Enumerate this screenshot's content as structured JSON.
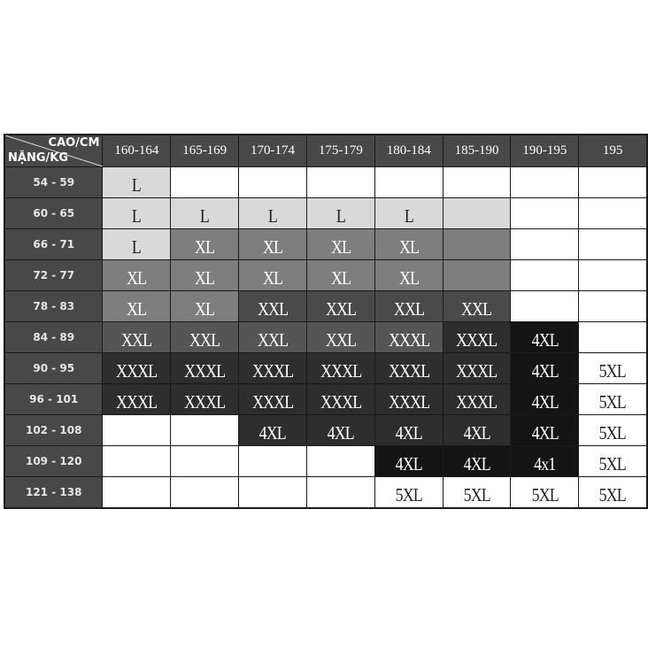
{
  "corner": {
    "height_label": "CAO/CM",
    "weight_label": "NẶNG/KG"
  },
  "columns": [
    "160-164",
    "165-169",
    "170-174",
    "175-179",
    "180-184",
    "185-190",
    "190-195",
    "195"
  ],
  "rows": [
    {
      "label": "54 - 59",
      "cells": [
        [
          "L",
          "l"
        ],
        [
          "",
          "w"
        ],
        [
          "",
          "w"
        ],
        [
          "",
          "w"
        ],
        [
          "",
          "w"
        ],
        [
          "",
          "w"
        ],
        [
          "",
          "w"
        ],
        [
          "",
          "w"
        ]
      ]
    },
    {
      "label": "60 - 65",
      "cells": [
        [
          "L",
          "l"
        ],
        [
          "L",
          "l"
        ],
        [
          "L",
          "l"
        ],
        [
          "L",
          "l"
        ],
        [
          "L",
          "l"
        ],
        [
          "",
          "l"
        ],
        [
          "",
          "w"
        ],
        [
          "",
          "w"
        ]
      ]
    },
    {
      "label": "66 - 71",
      "cells": [
        [
          "L",
          "l"
        ],
        [
          "XL",
          "g"
        ],
        [
          "XL",
          "g"
        ],
        [
          "XL",
          "g"
        ],
        [
          "XL",
          "g"
        ],
        [
          "",
          "g"
        ],
        [
          "",
          "w"
        ],
        [
          "",
          "w"
        ]
      ]
    },
    {
      "label": "72 - 77",
      "cells": [
        [
          "XL",
          "g"
        ],
        [
          "XL",
          "g"
        ],
        [
          "XL",
          "g"
        ],
        [
          "XL",
          "g"
        ],
        [
          "XL",
          "g"
        ],
        [
          "",
          "g"
        ],
        [
          "",
          "w"
        ],
        [
          "",
          "w"
        ]
      ]
    },
    {
      "label": "78 - 83",
      "cells": [
        [
          "XL",
          "g"
        ],
        [
          "XL",
          "g"
        ],
        [
          "XXL",
          "d"
        ],
        [
          "XXL",
          "d"
        ],
        [
          "XXL",
          "d"
        ],
        [
          "XXL",
          "d"
        ],
        [
          "",
          "w"
        ],
        [
          "",
          "w"
        ]
      ]
    },
    {
      "label": "84 - 89",
      "cells": [
        [
          "XXL",
          "m"
        ],
        [
          "XXL",
          "m"
        ],
        [
          "XXL",
          "m"
        ],
        [
          "XXL",
          "m"
        ],
        [
          "XXXL",
          "m"
        ],
        [
          "XXXL",
          "x"
        ],
        [
          "4XL",
          "k"
        ],
        [
          "",
          "w"
        ]
      ]
    },
    {
      "label": "90 - 95",
      "cells": [
        [
          "XXXL",
          "x"
        ],
        [
          "XXXL",
          "x"
        ],
        [
          "XXXL",
          "x"
        ],
        [
          "XXXL",
          "x"
        ],
        [
          "XXXL",
          "x"
        ],
        [
          "XXXL",
          "x"
        ],
        [
          "4XL",
          "k"
        ],
        [
          "5XL",
          "w"
        ]
      ]
    },
    {
      "label": "96 - 101",
      "cells": [
        [
          "XXXL",
          "x"
        ],
        [
          "XXXL",
          "x"
        ],
        [
          "XXXL",
          "x"
        ],
        [
          "XXXL",
          "x"
        ],
        [
          "XXXL",
          "x"
        ],
        [
          "XXXL",
          "x"
        ],
        [
          "4XL",
          "k"
        ],
        [
          "5XL",
          "w"
        ]
      ]
    },
    {
      "label": "102 - 108",
      "cells": [
        [
          "",
          "w"
        ],
        [
          "",
          "w"
        ],
        [
          "4XL",
          "x"
        ],
        [
          "4XL",
          "x"
        ],
        [
          "4XL",
          "x"
        ],
        [
          "4XL",
          "x"
        ],
        [
          "4XL",
          "k"
        ],
        [
          "5XL",
          "w"
        ]
      ]
    },
    {
      "label": "109 - 120",
      "cells": [
        [
          "",
          "w"
        ],
        [
          "",
          "w"
        ],
        [
          "",
          "w"
        ],
        [
          "",
          "w"
        ],
        [
          "4XL",
          "k"
        ],
        [
          "4XL",
          "k"
        ],
        [
          "4x1",
          "k"
        ],
        [
          "5XL",
          "w"
        ]
      ]
    },
    {
      "label": "121 - 138",
      "cells": [
        [
          "",
          "w"
        ],
        [
          "",
          "w"
        ],
        [
          "",
          "w"
        ],
        [
          "",
          "w"
        ],
        [
          "5XL",
          "w"
        ],
        [
          "5XL",
          "w"
        ],
        [
          "5XL",
          "w"
        ],
        [
          "5XL",
          "w"
        ]
      ]
    }
  ]
}
